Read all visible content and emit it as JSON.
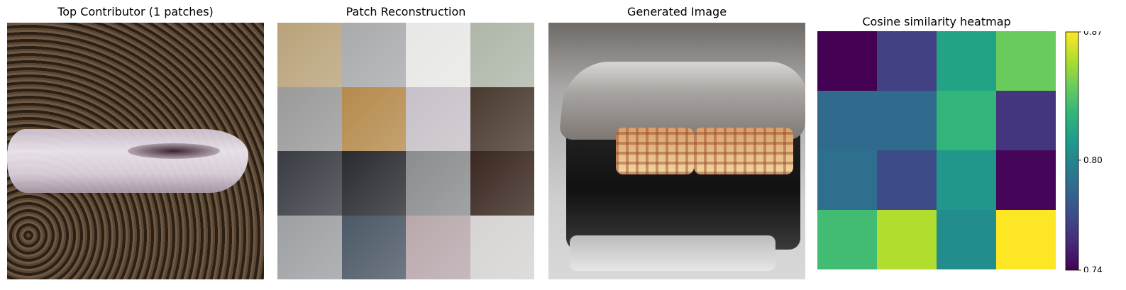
{
  "panels": {
    "top_contributor_title": "Top Contributor (1 patches)",
    "patch_reconstruction_title": "Patch Reconstruction",
    "generated_image_title": "Generated Image"
  },
  "patch_colors": [
    [
      "#b9a27a",
      "#a9aaac",
      "#e7e8e6",
      "#aeb6a8"
    ],
    [
      "#9a9a9a",
      "#b58a4c",
      "#c7c0c8",
      "#4a3a30"
    ],
    [
      "#3a3c44",
      "#2a2b30",
      "#8a8c8e",
      "#3a2820"
    ],
    [
      "#9da0a3",
      "#4c5866",
      "#b8a8ac",
      "#d6d4d2"
    ]
  ],
  "chart_data": {
    "type": "heatmap",
    "title": "Cosine similarity heatmap",
    "xlabel": "",
    "ylabel": "",
    "rows": 4,
    "cols": 4,
    "values": [
      [
        0.74,
        0.765,
        0.815,
        0.84
      ],
      [
        0.785,
        0.785,
        0.825,
        0.76
      ],
      [
        0.787,
        0.77,
        0.808,
        0.742
      ],
      [
        0.83,
        0.855,
        0.803,
        0.87
      ]
    ],
    "vmin": 0.74,
    "vmax": 0.87,
    "colormap": "viridis",
    "colorbar": {
      "ticks": [
        0.74,
        0.8,
        0.87
      ],
      "tick_labels": [
        "0.74",
        "0.80",
        "0.87"
      ]
    },
    "grid": false
  }
}
